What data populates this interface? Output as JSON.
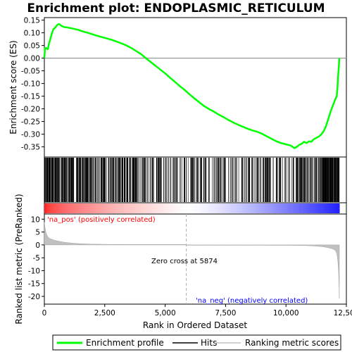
{
  "chart_data": {
    "type": "line",
    "title": "Enrichment plot: ENDOPLASMIC_RETICULUM",
    "xlabel": "Rank in Ordered Dataset",
    "ylabel_top": "Enrichment score (ES)",
    "ylabel_bottom": "Ranked list metric (PreRanked)",
    "xlim": [
      0,
      12500
    ],
    "x_ticks": [
      0,
      2500,
      5000,
      7500,
      10000,
      12500
    ],
    "x_tick_labels": [
      "0",
      "2,500",
      "5,000",
      "7,500",
      "10,000",
      "12,500"
    ],
    "es_ylim": [
      -0.39,
      0.16
    ],
    "es_ticks": [
      0.15,
      0.1,
      0.05,
      0.0,
      -0.05,
      -0.1,
      -0.15,
      -0.2,
      -0.25,
      -0.3,
      -0.35
    ],
    "es_tick_labels": [
      "0.15",
      "0.10",
      "0.05",
      "0.00",
      "-0.05",
      "-0.10",
      "-0.15",
      "-0.20",
      "-0.25",
      "-0.30",
      "-0.35"
    ],
    "metric_ylim": [
      -23,
      12
    ],
    "metric_ticks": [
      10,
      5,
      0,
      -5,
      -10,
      -15,
      -20
    ],
    "metric_tick_labels": [
      "10",
      "5",
      "0",
      "-5",
      "-10",
      "-15",
      "-20"
    ],
    "series": [
      {
        "name": "Enrichment profile",
        "color": "#00ff00",
        "x": [
          0,
          30,
          80,
          140,
          200,
          260,
          320,
          380,
          450,
          520,
          600,
          700,
          800,
          900,
          1000,
          1200,
          1400,
          1600,
          1800,
          2000,
          2200,
          2500,
          2800,
          3000,
          3200,
          3400,
          3600,
          3800,
          4000,
          4200,
          4400,
          4600,
          4800,
          5000,
          5200,
          5400,
          5600,
          5800,
          6000,
          6200,
          6400,
          6600,
          6800,
          7000,
          7200,
          7400,
          7600,
          7800,
          8000,
          8200,
          8400,
          8600,
          8800,
          9000,
          9200,
          9400,
          9600,
          9800,
          10000,
          10200,
          10350,
          10450,
          10550,
          10650,
          10750,
          10850,
          10950,
          11050,
          11150,
          11250,
          11350,
          11450,
          11550,
          11650,
          11750,
          11850,
          11950,
          12050,
          12100,
          12130,
          12160,
          12190,
          12210
        ],
        "y": [
          0.0,
          0.04,
          0.04,
          0.035,
          0.06,
          0.08,
          0.1,
          0.115,
          0.12,
          0.13,
          0.135,
          0.128,
          0.123,
          0.122,
          0.12,
          0.116,
          0.112,
          0.105,
          0.1,
          0.094,
          0.088,
          0.08,
          0.072,
          0.065,
          0.058,
          0.05,
          0.04,
          0.028,
          0.016,
          0.0,
          -0.015,
          -0.03,
          -0.045,
          -0.06,
          -0.077,
          -0.093,
          -0.11,
          -0.125,
          -0.142,
          -0.158,
          -0.173,
          -0.188,
          -0.2,
          -0.21,
          -0.222,
          -0.232,
          -0.243,
          -0.253,
          -0.262,
          -0.27,
          -0.278,
          -0.285,
          -0.29,
          -0.298,
          -0.308,
          -0.318,
          -0.328,
          -0.335,
          -0.34,
          -0.345,
          -0.355,
          -0.35,
          -0.342,
          -0.338,
          -0.33,
          -0.335,
          -0.328,
          -0.33,
          -0.32,
          -0.315,
          -0.31,
          -0.302,
          -0.29,
          -0.27,
          -0.24,
          -0.21,
          -0.185,
          -0.16,
          -0.15,
          -0.12,
          -0.07,
          -0.03,
          0.0
        ]
      }
    ],
    "zero_cross_label": "Zero cross at 5874",
    "zero_cross_x": 5874,
    "pos_label": "'na_pos' (positively correlated)",
    "neg_label": "'na_neg' (negatively correlated)",
    "n_genes": 12210,
    "legend": {
      "placement": "bottom",
      "entries": [
        "Enrichment profile",
        "Hits",
        "Ranking metric scores"
      ]
    },
    "colors": {
      "es_line": "#00ff00",
      "hits": "#000000",
      "metric_fill": "#c0c0c0",
      "pos_text": "#ff0000",
      "neg_text": "#0000ff",
      "zero_line": "#c0c0c0"
    }
  }
}
